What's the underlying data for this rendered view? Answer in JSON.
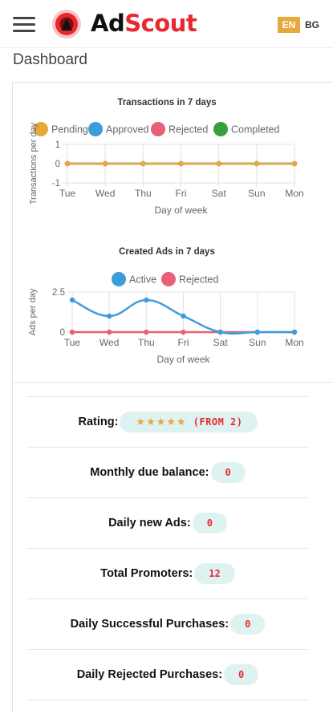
{
  "header": {
    "brand_prefix": "Ad",
    "brand_suffix": "Scout",
    "lang_active": "EN",
    "lang_other": "BG",
    "brand_color": "#e8282e"
  },
  "page": {
    "title": "Dashboard"
  },
  "chart_data": [
    {
      "type": "line",
      "title": "Transactions in 7 days",
      "xlabel": "Day of week",
      "ylabel": "Transactions per day",
      "categories": [
        "Tue",
        "Wed",
        "Thu",
        "Fri",
        "Sat",
        "Sun",
        "Mon"
      ],
      "yticks": [
        "1",
        "0",
        "-1"
      ],
      "ylim": [
        -1,
        1
      ],
      "legend_position": "top",
      "series": [
        {
          "name": "Pending",
          "color": "#e5a93c",
          "values": [
            0,
            0,
            0,
            0,
            0,
            0,
            0
          ]
        },
        {
          "name": "Approved",
          "color": "#3d9ddc",
          "values": [
            0,
            0,
            0,
            0,
            0,
            0,
            0
          ]
        },
        {
          "name": "Rejected",
          "color": "#e8607a",
          "values": [
            0,
            0,
            0,
            0,
            0,
            0,
            0
          ]
        },
        {
          "name": "Completed",
          "color": "#3a9e3a",
          "values": [
            0,
            0,
            0,
            0,
            0,
            0,
            0
          ]
        }
      ],
      "grid": true
    },
    {
      "type": "line",
      "title": "Created Ads in 7 days",
      "xlabel": "Day of week",
      "ylabel": "Ads per day",
      "categories": [
        "Tue",
        "Wed",
        "Thu",
        "Fri",
        "Sat",
        "Sun",
        "Mon"
      ],
      "yticks": [
        "2.5",
        "0"
      ],
      "ylim": [
        0,
        2.5
      ],
      "legend_position": "top",
      "series": [
        {
          "name": "Active",
          "color": "#3d9ddc",
          "values": [
            2,
            1,
            2,
            1,
            0,
            0,
            0
          ]
        },
        {
          "name": "Rejected",
          "color": "#e8607a",
          "values": [
            0,
            0,
            0,
            0,
            0,
            0,
            0
          ]
        }
      ],
      "grid": true
    }
  ],
  "stats": {
    "rating": {
      "label": "Rating:",
      "stars": "★★★★★",
      "value": "(FROM 2)",
      "star_count": 5
    },
    "monthly_due": {
      "label": "Monthly due balance:",
      "value": "0"
    },
    "daily_new_ads": {
      "label": "Daily new Ads:",
      "value": "0"
    },
    "total_promoters": {
      "label": "Total Promoters:",
      "value": "12"
    },
    "daily_success": {
      "label": "Daily Successful Purchases:",
      "value": "0"
    },
    "daily_rejected": {
      "label": "Daily Rejected Purchases:",
      "value": "0"
    }
  }
}
